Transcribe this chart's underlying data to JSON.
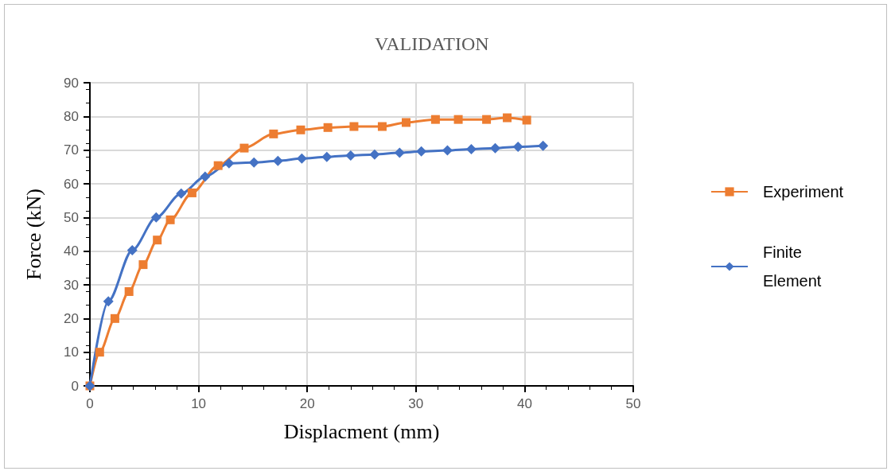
{
  "chart_data": {
    "type": "line",
    "title": "VALIDATION",
    "xlabel": "Displacment (mm)",
    "ylabel": "Force (kN)",
    "xlim": [
      0,
      50
    ],
    "xticks": [
      0,
      10,
      20,
      30,
      40,
      50
    ],
    "ylim": [
      0,
      90
    ],
    "yticks": [
      0,
      10,
      20,
      30,
      40,
      50,
      60,
      70,
      80,
      90
    ],
    "grid": true,
    "legend": "right",
    "series": [
      {
        "name": "Experiment",
        "color": "#ed7d31",
        "marker": "square",
        "x": [
          0,
          0.9,
          2.3,
          3.6,
          4.9,
          6.2,
          7.4,
          9.4,
          11.8,
          14.2,
          16.9,
          19.4,
          21.9,
          24.3,
          26.9,
          29.1,
          31.8,
          33.9,
          36.5,
          38.4,
          40.2
        ],
        "values": [
          0,
          10,
          20,
          28,
          36,
          43.3,
          49.3,
          57.3,
          65.4,
          70.6,
          74.8,
          76,
          76.7,
          77,
          77,
          78.2,
          79.1,
          79.1,
          79.1,
          79.6,
          78.9
        ]
      },
      {
        "name": "Finite Element",
        "color": "#4472c4",
        "marker": "diamond",
        "x": [
          0,
          1.7,
          3.9,
          6.1,
          8.4,
          10.6,
          12.8,
          15.1,
          17.3,
          19.5,
          21.8,
          24,
          26.2,
          28.5,
          30.5,
          32.9,
          35.1,
          37.3,
          39.4,
          41.7
        ],
        "values": [
          0,
          25.1,
          40.3,
          50,
          57.1,
          62.1,
          66.1,
          66.3,
          66.8,
          67.5,
          68,
          68.4,
          68.7,
          69.2,
          69.6,
          69.9,
          70.3,
          70.6,
          71,
          71.3
        ]
      }
    ]
  }
}
